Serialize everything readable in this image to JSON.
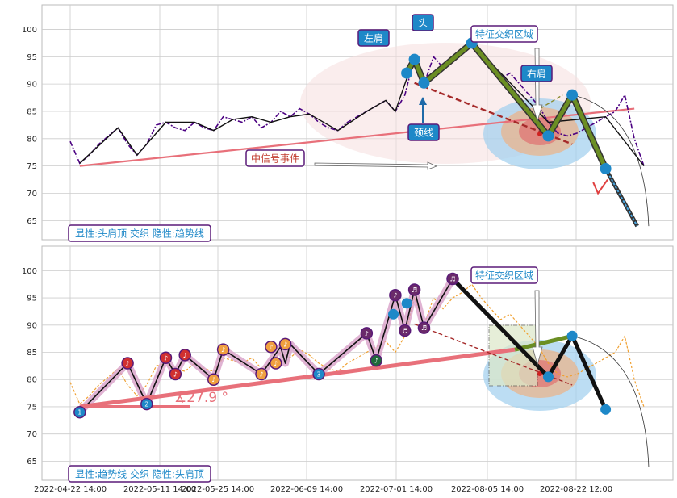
{
  "colors": {
    "price_line": "#4b0082",
    "price_black": "#111111",
    "trend_red": "#e8707a",
    "neck_red": "#a52a2a",
    "green": "#6b8e23",
    "blue_marker": "#1e88c8",
    "label_fill": "#1e88c8",
    "label_border": "#5a1a78",
    "ellipse_pink": "#f6dede",
    "ellipse_blue": "#9fcfee",
    "ellipse_orange": "#e9b48c",
    "ellipse_red": "#e07070",
    "orange_dashed": "#f0a030",
    "grid": "#cccccc"
  },
  "top_panel": {
    "y_ticks": [
      "100",
      "95",
      "90",
      "85",
      "80",
      "75",
      "70",
      "65"
    ],
    "labels": {
      "left_shoulder": "左肩",
      "head": "头",
      "right_shoulder": "右肩",
      "neckline": "颈线",
      "feature_zone": "特征交织区域",
      "mid_signal": "中信号事件"
    },
    "legend": "显性:头肩顶 交织 隐性:趋势线"
  },
  "bottom_panel": {
    "y_ticks": [
      "100",
      "95",
      "90",
      "85",
      "80",
      "75",
      "70",
      "65"
    ],
    "labels": {
      "feature_zone": "特征交织区域",
      "angle": "∡27.9 °"
    },
    "legend": "显性:趋势线 交织 隐性:头肩顶"
  },
  "x_ticks": [
    "2022-04-22 14:00",
    "2022-05-11 14:00",
    "2022-05-25 14:00",
    "2022-06-09 14:00",
    "2022-07-01 14:00",
    "2022-08-05 14:00",
    "2022-08-22 12:00"
  ],
  "chart_data": [
    {
      "type": "line",
      "title": "",
      "ylim": [
        61.5,
        104.5
      ],
      "x_tick_labels": [
        "2022-04-22 14:00",
        "2022-05-11 14:00",
        "2022-05-25 14:00",
        "2022-06-09 14:00",
        "2022-07-01 14:00",
        "2022-08-05 14:00",
        "2022-08-22 12:00"
      ],
      "series": [
        {
          "name": "",
          "x_index": [
            0,
            1,
            2,
            3,
            4,
            5,
            6,
            7,
            8,
            9,
            10,
            11,
            12,
            13,
            14,
            15,
            16,
            17,
            18,
            19,
            20,
            21,
            22,
            23,
            24,
            25,
            26,
            27,
            28,
            29,
            30,
            31,
            32,
            33,
            34,
            35,
            36,
            37,
            38,
            39,
            40,
            41,
            42,
            43,
            44,
            45,
            46,
            47,
            48,
            49,
            50,
            51,
            52,
            53,
            54,
            55,
            56,
            57,
            58,
            59,
            60
          ],
          "values": [
            79.5,
            75.5,
            77,
            79,
            80.5,
            82,
            79,
            77,
            79,
            82.5,
            83,
            82,
            81.5,
            83,
            82,
            81.5,
            84,
            83.5,
            83,
            84,
            82,
            83,
            85,
            84,
            85.5,
            84.5,
            83,
            82,
            81.5,
            83,
            84,
            85,
            86,
            87,
            85,
            88,
            95,
            90,
            95,
            93,
            95,
            96,
            97.5,
            95,
            93,
            91,
            92,
            90,
            88,
            86,
            83,
            81,
            80.5,
            81,
            82,
            83,
            84,
            85,
            88,
            80,
            75
          ]
        }
      ],
      "pattern_points": {
        "left_shoulder": 94.5,
        "head": 97.5,
        "right_shoulder": 88,
        "neck_left": 90.2,
        "neck_right": 80.5,
        "trend_start": 75,
        "trend_end": 88
      }
    },
    {
      "type": "line",
      "title": "",
      "ylim": [
        61.5,
        104.5
      ],
      "series": [
        {
          "name": "",
          "points_pivots": [
            74,
            83,
            75.5,
            84,
            81,
            84.5,
            80,
            85.5,
            81,
            86,
            83,
            86.5,
            81,
            88.5,
            83.5,
            95.5,
            89,
            96.5,
            89.5,
            98.5,
            80.5,
            88,
            75
          ]
        }
      ],
      "trend_angle_deg": 27.9
    }
  ]
}
